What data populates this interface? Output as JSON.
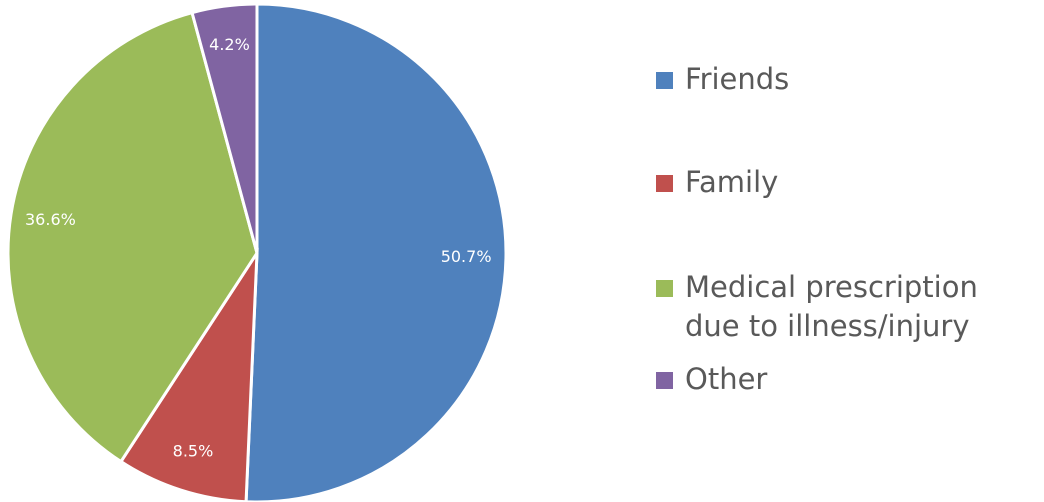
{
  "chart_data": {
    "type": "pie",
    "categories": [
      "Friends",
      "Family",
      "Medical prescription due to illness/injury",
      "Other"
    ],
    "values": [
      50.7,
      8.5,
      36.6,
      4.2
    ],
    "value_labels": [
      "50.7%",
      "8.5%",
      "36.6%",
      "4.2%"
    ],
    "colors": [
      "#4f81bd",
      "#c0504d",
      "#9bbb59",
      "#8064a2"
    ],
    "legend": "right"
  }
}
